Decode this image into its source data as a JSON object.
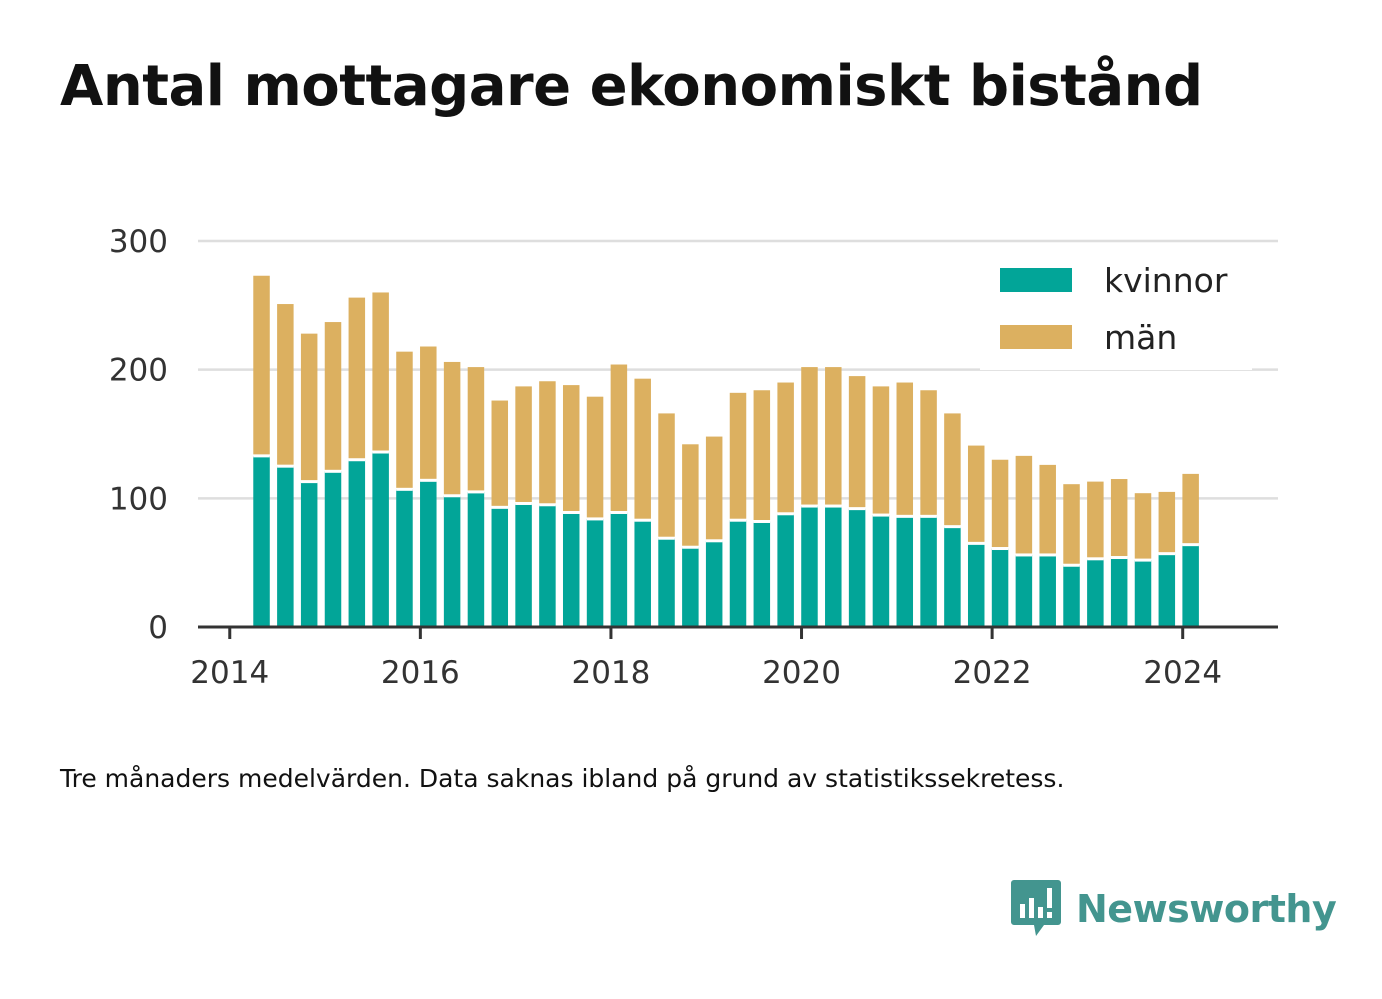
{
  "title": "Antal mottagare ekonomiskt bistånd",
  "note": "Tre månaders medelvärden. Data saknas ibland på grund av statistikssekretess.",
  "brand": {
    "name": "Newsworthy",
    "icon": "bar-chart-speech-bubble-icon",
    "color": "#43958f"
  },
  "colors": {
    "kvinnor": "#02a598",
    "man": "#dcb060",
    "grid": "#dedede",
    "axis": "#333333"
  },
  "chart_data": {
    "type": "bar",
    "stacked": true,
    "x": [
      "2014-05",
      "2014-08",
      "2014-11",
      "2015-02",
      "2015-05",
      "2015-08",
      "2015-11",
      "2016-02",
      "2016-05",
      "2016-08",
      "2016-11",
      "2017-02",
      "2017-05",
      "2017-08",
      "2017-11",
      "2018-02",
      "2018-05",
      "2018-08",
      "2018-11",
      "2019-02",
      "2019-05",
      "2019-08",
      "2019-11",
      "2020-02",
      "2020-05",
      "2020-08",
      "2020-11",
      "2021-02",
      "2021-05",
      "2021-08",
      "2021-11",
      "2022-02",
      "2022-05",
      "2022-08",
      "2022-11",
      "2023-02",
      "2023-05",
      "2023-08",
      "2023-11",
      "2024-02"
    ],
    "series": [
      {
        "name": "kvinnor",
        "color": "#02a598",
        "values": [
          133,
          125,
          113,
          121,
          130,
          136,
          107,
          114,
          102,
          105,
          93,
          96,
          95,
          89,
          84,
          89,
          83,
          69,
          62,
          67,
          83,
          82,
          88,
          94,
          94,
          92,
          87,
          86,
          86,
          78,
          65,
          61,
          56,
          56,
          48,
          53,
          54,
          52,
          57,
          64
        ]
      },
      {
        "name": "män",
        "color": "#dcb060",
        "values": [
          140,
          126,
          115,
          116,
          126,
          124,
          107,
          104,
          104,
          97,
          83,
          91,
          96,
          99,
          95,
          115,
          110,
          97,
          80,
          81,
          99,
          102,
          102,
          108,
          108,
          103,
          100,
          104,
          98,
          88,
          76,
          69,
          77,
          70,
          63,
          60,
          61,
          52,
          48,
          55
        ]
      }
    ],
    "ylim": [
      0,
      300
    ],
    "xlim": [
      "2013-09",
      "2025-01"
    ],
    "yticks": [
      0,
      100,
      200,
      300
    ],
    "ytick_labels": [
      "0",
      "100",
      "200",
      "300"
    ],
    "xticks": [
      "2014-01",
      "2016-01",
      "2018-01",
      "2020-01",
      "2022-01",
      "2024-01"
    ],
    "xtick_labels": [
      "2014",
      "2016",
      "2018",
      "2020",
      "2022",
      "2024"
    ],
    "legend": {
      "position": "top-right",
      "entries": [
        "kvinnor",
        "män"
      ]
    },
    "grid": "horizontal",
    "xlabel": "",
    "ylabel": ""
  }
}
